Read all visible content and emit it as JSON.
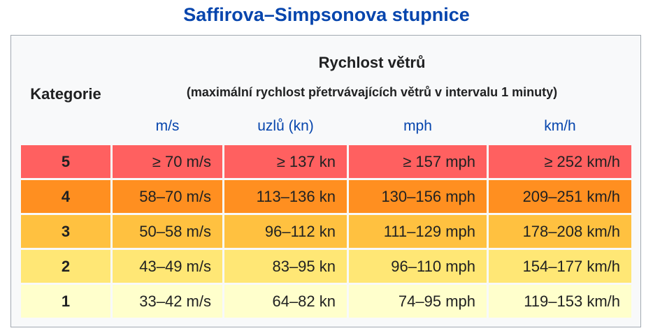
{
  "title": "Saffirova–Simpsonova stupnice",
  "table": {
    "header": {
      "category": "Kategorie",
      "speed": "Rychlost větrů",
      "note": "(maximální rychlost přetrvávajících větrů v intervalu 1 minuty)",
      "units": [
        "m/s",
        "uzlů (kn)",
        "mph",
        "km/h"
      ]
    },
    "rows": [
      [
        "5",
        "≥ 70 m/s",
        "≥ 137 kn",
        "≥ 157 mph",
        "≥ 252 km/h"
      ],
      [
        "4",
        "58–70 m/s",
        "113–136 kn",
        "130–156 mph",
        "209–251 km/h"
      ],
      [
        "3",
        "50–58 m/s",
        "96–112 kn",
        "111–129 mph",
        "178–208 km/h"
      ],
      [
        "2",
        "43–49 m/s",
        "83–95 kn",
        "96–110 mph",
        "154–177 km/h"
      ],
      [
        "1",
        "33–42 m/s",
        "64–82 kn",
        "74–95 mph",
        "119–153 km/h"
      ]
    ]
  }
}
